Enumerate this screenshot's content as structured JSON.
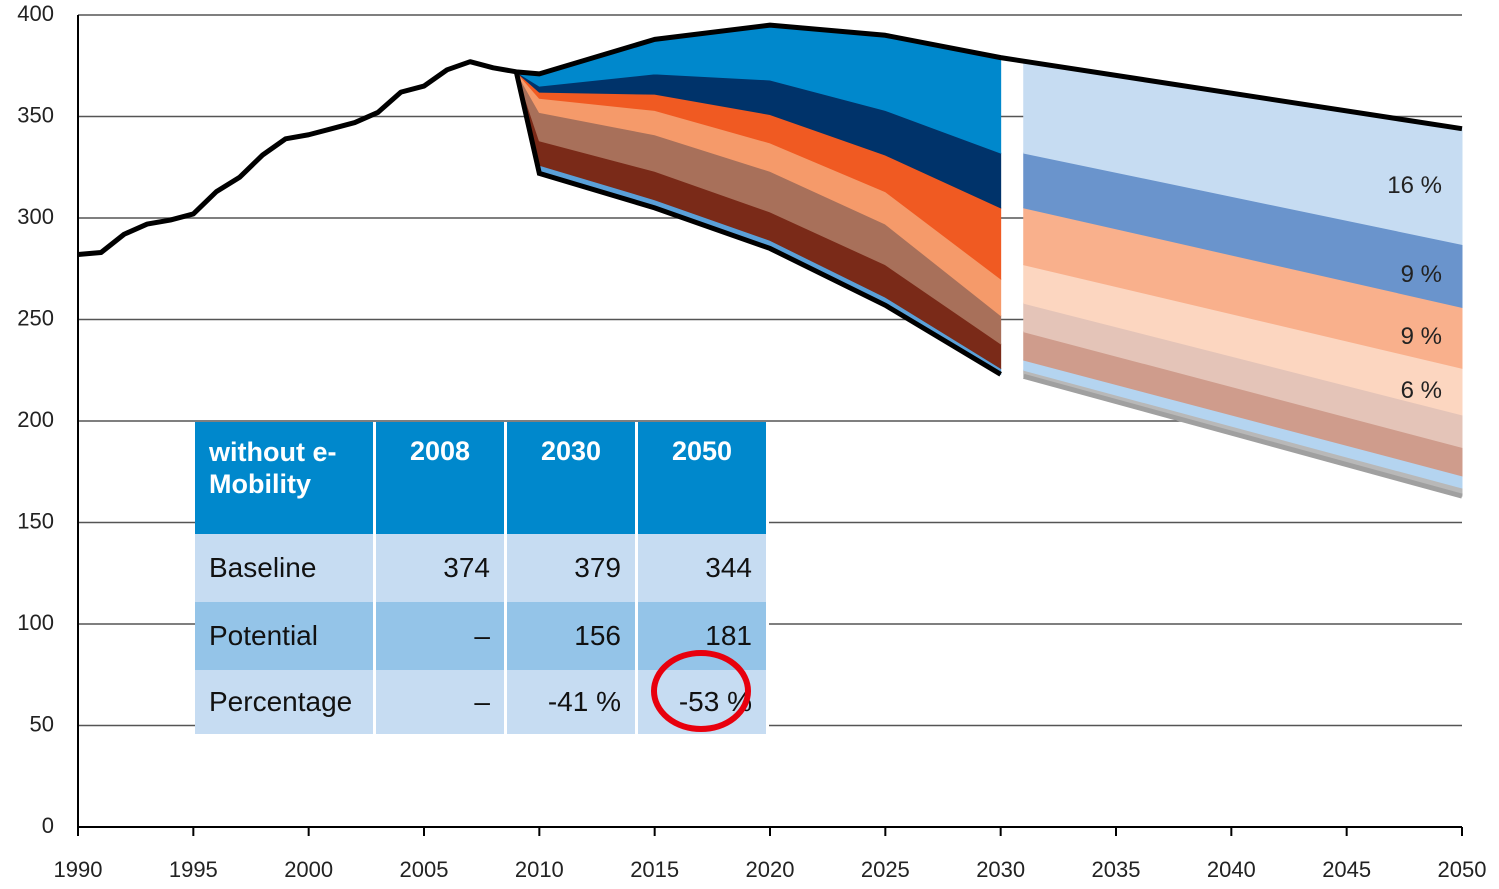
{
  "chart_data": {
    "type": "area",
    "xlim": [
      1990,
      2050
    ],
    "ylim": [
      0,
      400
    ],
    "xticks": [
      1990,
      1995,
      2000,
      2005,
      2010,
      2015,
      2020,
      2025,
      2030,
      2035,
      2040,
      2045,
      2050
    ],
    "yticks": [
      0,
      50,
      100,
      150,
      200,
      250,
      300,
      350,
      400
    ],
    "grid": true,
    "lines": [
      {
        "color": "#000000",
        "x": [
          1990,
          1991,
          1992,
          1993,
          1994,
          1995,
          1996,
          1997,
          1998,
          1999,
          2000,
          2001,
          2002,
          2003,
          2004,
          2005,
          2006,
          2007,
          2008,
          2009,
          2010,
          2015,
          2020,
          2025,
          2030,
          2050
        ],
        "values": [
          282,
          283,
          292,
          297,
          299,
          302,
          313,
          320,
          331,
          339,
          341,
          344,
          347,
          352,
          362,
          365,
          373,
          377,
          374,
          372,
          371,
          388,
          395,
          390,
          379,
          344
        ]
      }
    ],
    "areas": [
      {
        "x": [
          2009,
          2010,
          2015,
          2020,
          2025,
          2030
        ],
        "base": [
          372,
          322,
          305,
          285,
          257,
          223
        ],
        "base_color": "#000000",
        "series": [
          {
            "color": "#5aa0d8",
            "values": [
              0,
              4,
              4,
              4,
              4,
              3
            ]
          },
          {
            "color": "#7a2a18",
            "values": [
              0,
              12,
              14,
              14,
              16,
              12
            ]
          },
          {
            "color": "#a8705a",
            "values": [
              0,
              14,
              18,
              20,
              20,
              14
            ]
          },
          {
            "color": "#f59a6a",
            "values": [
              0,
              7,
              12,
              14,
              16,
              18
            ]
          },
          {
            "color": "#f05a22",
            "values": [
              0,
              3,
              8,
              14,
              18,
              35
            ]
          },
          {
            "color": "#00336a",
            "values": [
              0,
              3,
              10,
              17,
              22,
              27
            ]
          },
          {
            "color": "#0088cc",
            "values": [
              0,
              6,
              17,
              27,
              37,
              47
            ]
          }
        ]
      },
      {
        "x": [
          2031,
          2050
        ],
        "base": [
          222,
          163
        ],
        "base_color": "#a0a0a0",
        "series": [
          {
            "color": "#b8b8b8",
            "values": [
              3,
              4
            ]
          },
          {
            "color": "#b4d4f0",
            "values": [
              5,
              6
            ]
          },
          {
            "color": "#cf9c8c",
            "values": [
              14,
              14
            ]
          },
          {
            "color": "#e4c4b8",
            "values": [
              14,
              16
            ]
          },
          {
            "color": "#fcd6c0",
            "values": [
              19,
              23
            ]
          },
          {
            "color": "#f9b08c",
            "values": [
              28,
              30
            ]
          },
          {
            "color": "#6a94cc",
            "values": [
              27,
              31
            ]
          },
          {
            "color": "#c6dcf2",
            "values": [
              46,
              57
            ]
          }
        ]
      }
    ],
    "annotations": [
      "16 %",
      "9 %",
      "9 %",
      "6 %"
    ]
  },
  "table": {
    "header": [
      "without e-Mobility",
      "2008",
      "2030",
      "2050"
    ],
    "rows": [
      [
        "Baseline",
        "374",
        "379",
        "344"
      ],
      [
        "Potential",
        "–",
        "156",
        "181"
      ],
      [
        "Percentage",
        "–",
        "-41 %",
        "-53 %"
      ]
    ]
  }
}
